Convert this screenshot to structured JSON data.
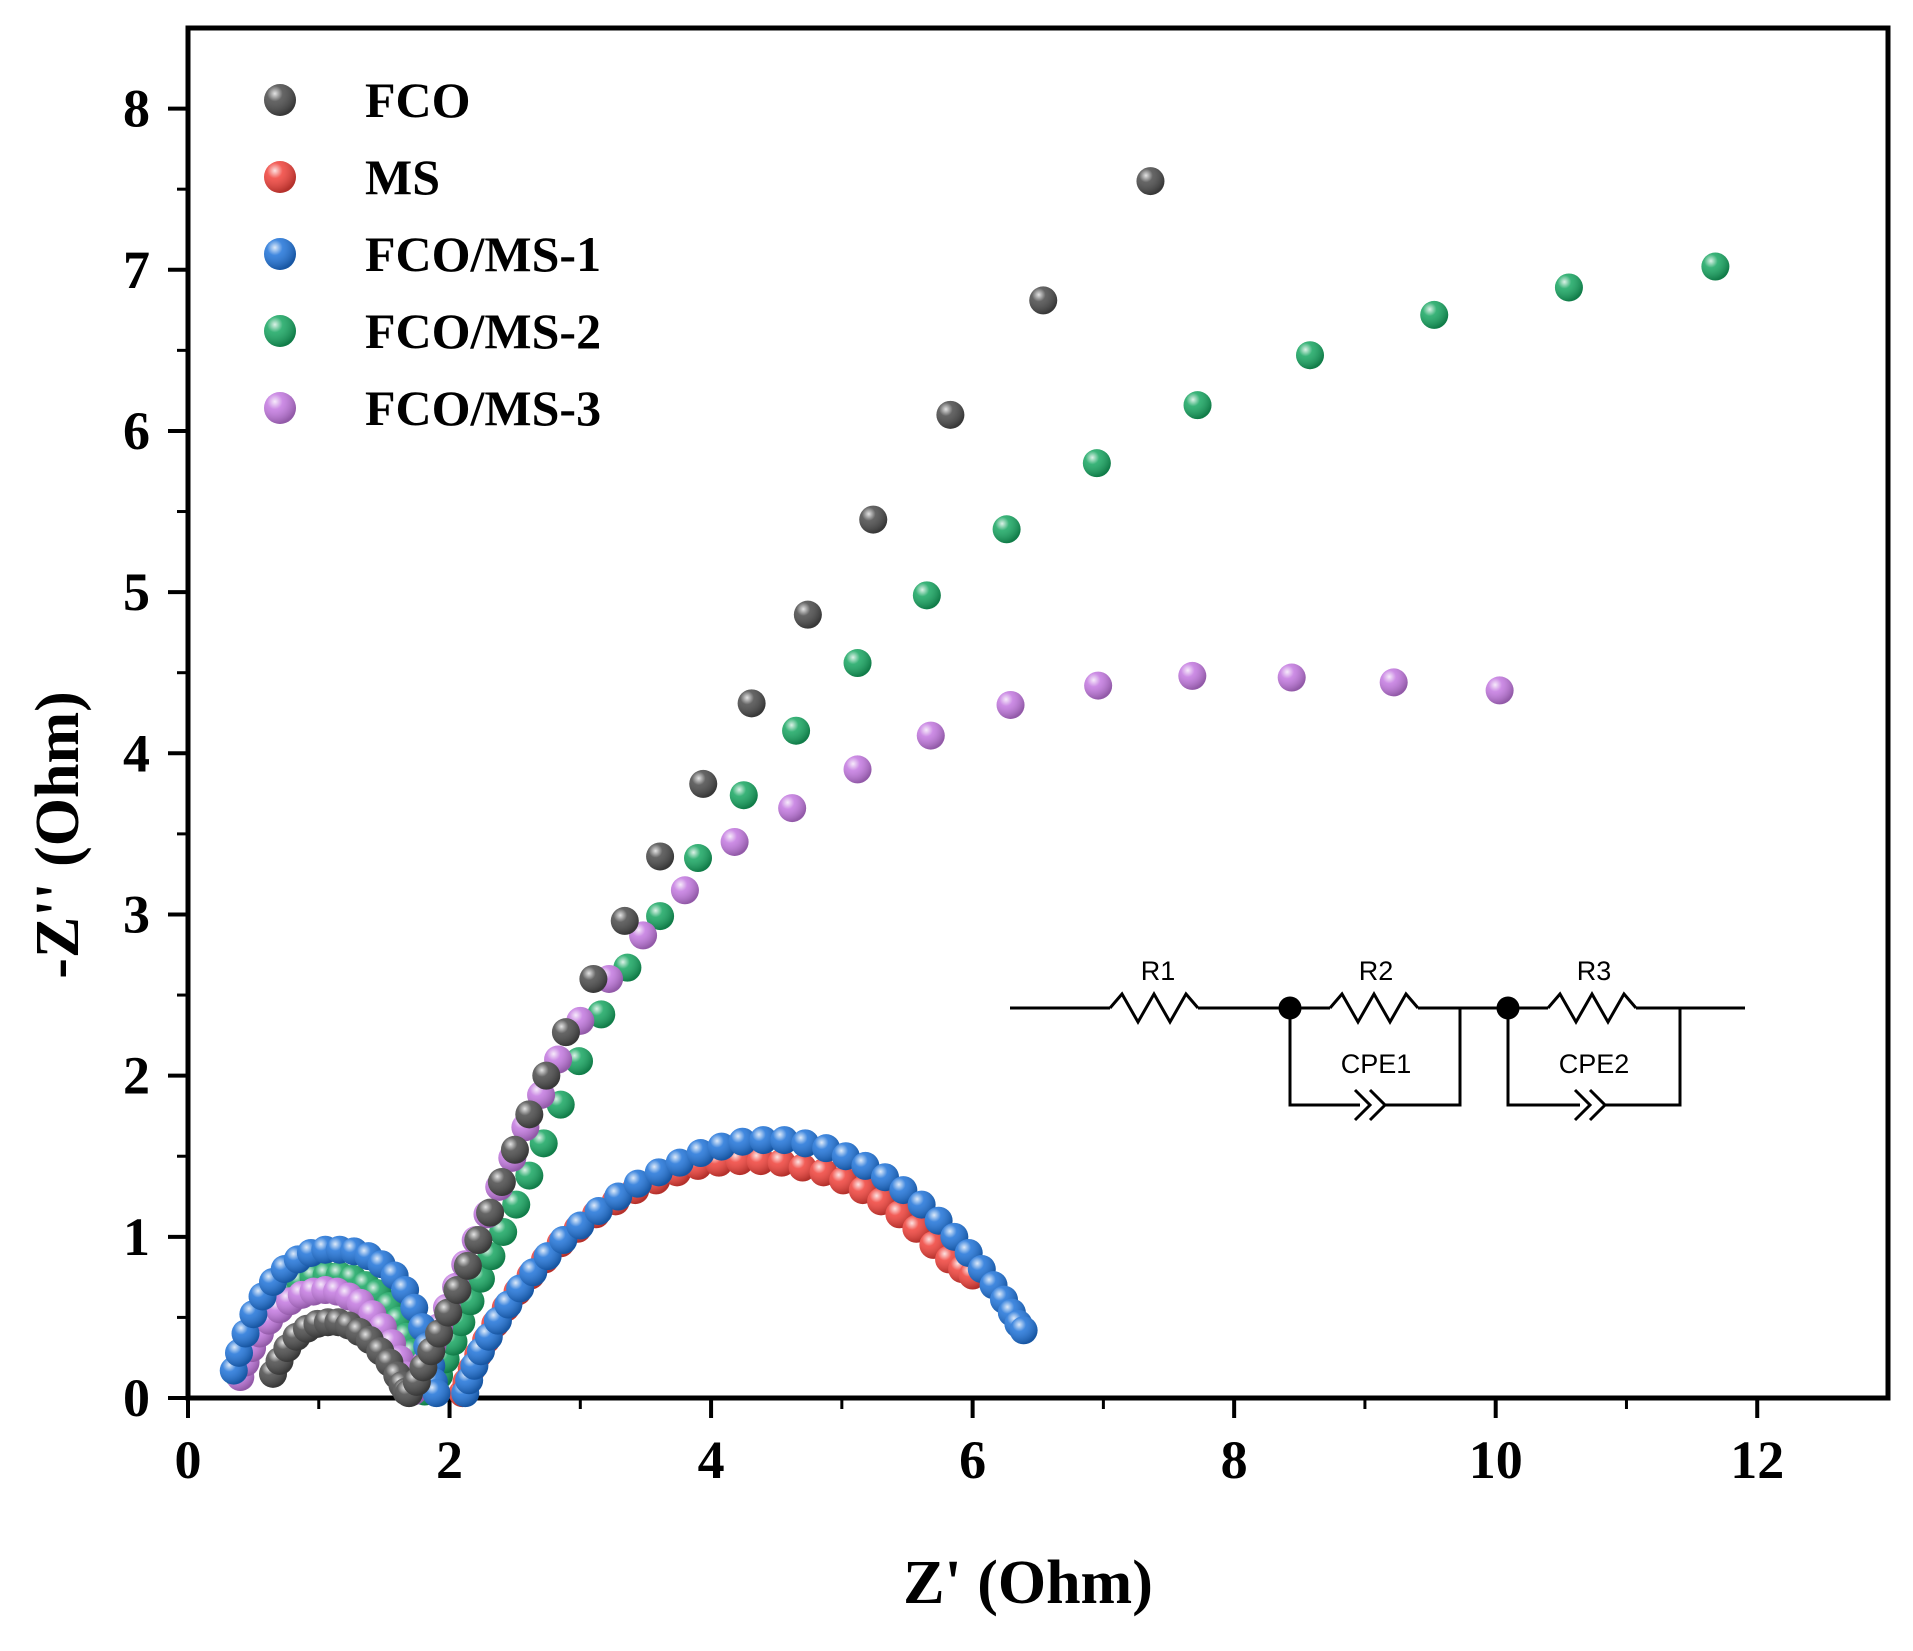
{
  "chart_data": {
    "type": "scatter",
    "title": "",
    "xlabel": "Z' (Ohm)",
    "ylabel": "-Z'' (Ohm)",
    "xlim": [
      0,
      13
    ],
    "ylim": [
      0,
      8.5
    ],
    "xticks": [
      0,
      2,
      4,
      6,
      8,
      10,
      12
    ],
    "xtick_labels": [
      "0",
      "2",
      "4",
      "6",
      "8",
      "10",
      "12"
    ],
    "yticks": [
      0,
      1,
      2,
      3,
      4,
      5,
      6,
      7,
      8
    ],
    "ytick_labels": [
      "0",
      "1",
      "2",
      "3",
      "4",
      "5",
      "6",
      "7",
      "8"
    ],
    "legend_position": "top-left",
    "series": [
      {
        "name": "FCO",
        "color": "#4a4a4a",
        "x": [
          0.65,
          0.7,
          0.76,
          0.83,
          0.91,
          0.99,
          1.07,
          1.15,
          1.23,
          1.31,
          1.39,
          1.47,
          1.54,
          1.6,
          1.64,
          1.67,
          1.69,
          1.75,
          1.8,
          1.86,
          1.92,
          1.99,
          2.06,
          2.14,
          2.22,
          2.31,
          2.4,
          2.5,
          2.61,
          2.74,
          2.89,
          3.1,
          3.34,
          3.61,
          3.94,
          4.31,
          4.74,
          5.24,
          5.83,
          6.54,
          7.36
        ],
        "y": [
          0.15,
          0.23,
          0.31,
          0.38,
          0.43,
          0.46,
          0.47,
          0.47,
          0.45,
          0.41,
          0.36,
          0.29,
          0.22,
          0.14,
          0.08,
          0.04,
          0.03,
          0.1,
          0.19,
          0.29,
          0.4,
          0.53,
          0.67,
          0.82,
          0.98,
          1.15,
          1.34,
          1.54,
          1.76,
          2.0,
          2.27,
          2.6,
          2.96,
          3.36,
          3.81,
          4.31,
          4.86,
          5.45,
          6.1,
          6.81,
          7.55
        ]
      },
      {
        "name": "MS",
        "color": "#f0413a",
        "x": [
          2.1,
          2.13,
          2.17,
          2.22,
          2.28,
          2.35,
          2.43,
          2.52,
          2.62,
          2.73,
          2.85,
          2.98,
          3.12,
          3.27,
          3.42,
          3.58,
          3.74,
          3.9,
          4.06,
          4.22,
          4.38,
          4.54,
          4.7,
          4.86,
          5.01,
          5.16,
          5.3,
          5.44,
          5.57,
          5.7,
          5.82,
          5.92,
          6.0
        ],
        "y": [
          0.03,
          0.1,
          0.18,
          0.27,
          0.36,
          0.46,
          0.56,
          0.66,
          0.76,
          0.86,
          0.96,
          1.05,
          1.14,
          1.22,
          1.29,
          1.35,
          1.4,
          1.44,
          1.46,
          1.47,
          1.47,
          1.46,
          1.43,
          1.4,
          1.35,
          1.29,
          1.22,
          1.14,
          1.05,
          0.95,
          0.86,
          0.8,
          0.76
        ]
      },
      {
        "name": "FCO/MS-1",
        "color": "#1f73d9",
        "x": [
          0.35,
          0.39,
          0.44,
          0.5,
          0.57,
          0.65,
          0.74,
          0.84,
          0.94,
          1.05,
          1.16,
          1.27,
          1.38,
          1.48,
          1.58,
          1.66,
          1.73,
          1.79,
          1.83,
          1.86,
          1.88,
          1.9,
          2.12,
          2.15,
          2.19,
          2.24,
          2.3,
          2.37,
          2.45,
          2.54,
          2.64,
          2.75,
          2.87,
          3.0,
          3.14,
          3.29,
          3.44,
          3.6,
          3.76,
          3.92,
          4.08,
          4.24,
          4.4,
          4.56,
          4.72,
          4.88,
          5.03,
          5.18,
          5.33,
          5.47,
          5.61,
          5.74,
          5.86,
          5.97,
          6.07,
          6.16,
          6.24,
          6.3,
          6.35,
          6.39
        ],
        "y": [
          0.17,
          0.28,
          0.4,
          0.52,
          0.63,
          0.72,
          0.8,
          0.86,
          0.9,
          0.92,
          0.92,
          0.91,
          0.88,
          0.83,
          0.76,
          0.67,
          0.56,
          0.44,
          0.32,
          0.2,
          0.1,
          0.03,
          0.03,
          0.11,
          0.2,
          0.29,
          0.38,
          0.48,
          0.58,
          0.68,
          0.78,
          0.88,
          0.98,
          1.07,
          1.16,
          1.25,
          1.33,
          1.4,
          1.46,
          1.52,
          1.56,
          1.59,
          1.6,
          1.6,
          1.58,
          1.55,
          1.5,
          1.44,
          1.37,
          1.29,
          1.2,
          1.1,
          1.0,
          0.9,
          0.8,
          0.7,
          0.61,
          0.53,
          0.46,
          0.42
        ]
      },
      {
        "name": "FCO/MS-2",
        "color": "#17a661",
        "x": [
          0.38,
          0.42,
          0.47,
          0.53,
          0.6,
          0.68,
          0.77,
          0.86,
          0.96,
          1.06,
          1.16,
          1.26,
          1.36,
          1.45,
          1.54,
          1.61,
          1.67,
          1.72,
          1.76,
          1.79,
          1.81,
          1.88,
          1.92,
          1.97,
          2.03,
          2.09,
          2.16,
          2.24,
          2.32,
          2.41,
          2.51,
          2.61,
          2.72,
          2.85,
          2.99,
          3.16,
          3.36,
          3.61,
          3.9,
          4.25,
          4.65,
          5.12,
          5.65,
          6.26,
          6.95,
          7.72,
          8.58,
          9.53,
          10.56,
          11.68
        ],
        "y": [
          0.15,
          0.25,
          0.35,
          0.45,
          0.54,
          0.62,
          0.68,
          0.72,
          0.75,
          0.76,
          0.76,
          0.74,
          0.7,
          0.65,
          0.57,
          0.48,
          0.38,
          0.28,
          0.18,
          0.1,
          0.04,
          0.05,
          0.14,
          0.24,
          0.35,
          0.47,
          0.6,
          0.74,
          0.88,
          1.03,
          1.2,
          1.38,
          1.58,
          1.82,
          2.09,
          2.38,
          2.67,
          2.99,
          3.35,
          3.74,
          4.14,
          4.56,
          4.98,
          5.39,
          5.8,
          6.16,
          6.47,
          6.72,
          6.89,
          7.02
        ]
      },
      {
        "name": "FCO/MS-3",
        "color": "#c378e0",
        "x": [
          0.4,
          0.44,
          0.49,
          0.55,
          0.62,
          0.7,
          0.78,
          0.87,
          0.96,
          1.05,
          1.14,
          1.23,
          1.32,
          1.41,
          1.49,
          1.56,
          1.62,
          1.67,
          1.7,
          1.72,
          1.78,
          1.82,
          1.87,
          1.92,
          1.98,
          2.05,
          2.12,
          2.2,
          2.29,
          2.38,
          2.48,
          2.58,
          2.7,
          2.83,
          3.0,
          3.22,
          3.48,
          3.8,
          4.18,
          4.62,
          5.12,
          5.68,
          6.29,
          6.96,
          7.68,
          8.44,
          9.22,
          10.03
        ],
        "y": [
          0.13,
          0.22,
          0.31,
          0.4,
          0.48,
          0.55,
          0.6,
          0.64,
          0.66,
          0.67,
          0.66,
          0.63,
          0.59,
          0.52,
          0.44,
          0.34,
          0.24,
          0.14,
          0.07,
          0.04,
          0.12,
          0.22,
          0.33,
          0.44,
          0.56,
          0.69,
          0.83,
          0.98,
          1.14,
          1.31,
          1.49,
          1.68,
          1.88,
          2.1,
          2.34,
          2.6,
          2.87,
          3.15,
          3.45,
          3.66,
          3.9,
          4.11,
          4.3,
          4.42,
          4.48,
          4.47,
          4.44,
          4.39
        ]
      }
    ],
    "inset_circuit": {
      "components": [
        "R1",
        "R2",
        "R3",
        "CPE1",
        "CPE2"
      ]
    }
  }
}
